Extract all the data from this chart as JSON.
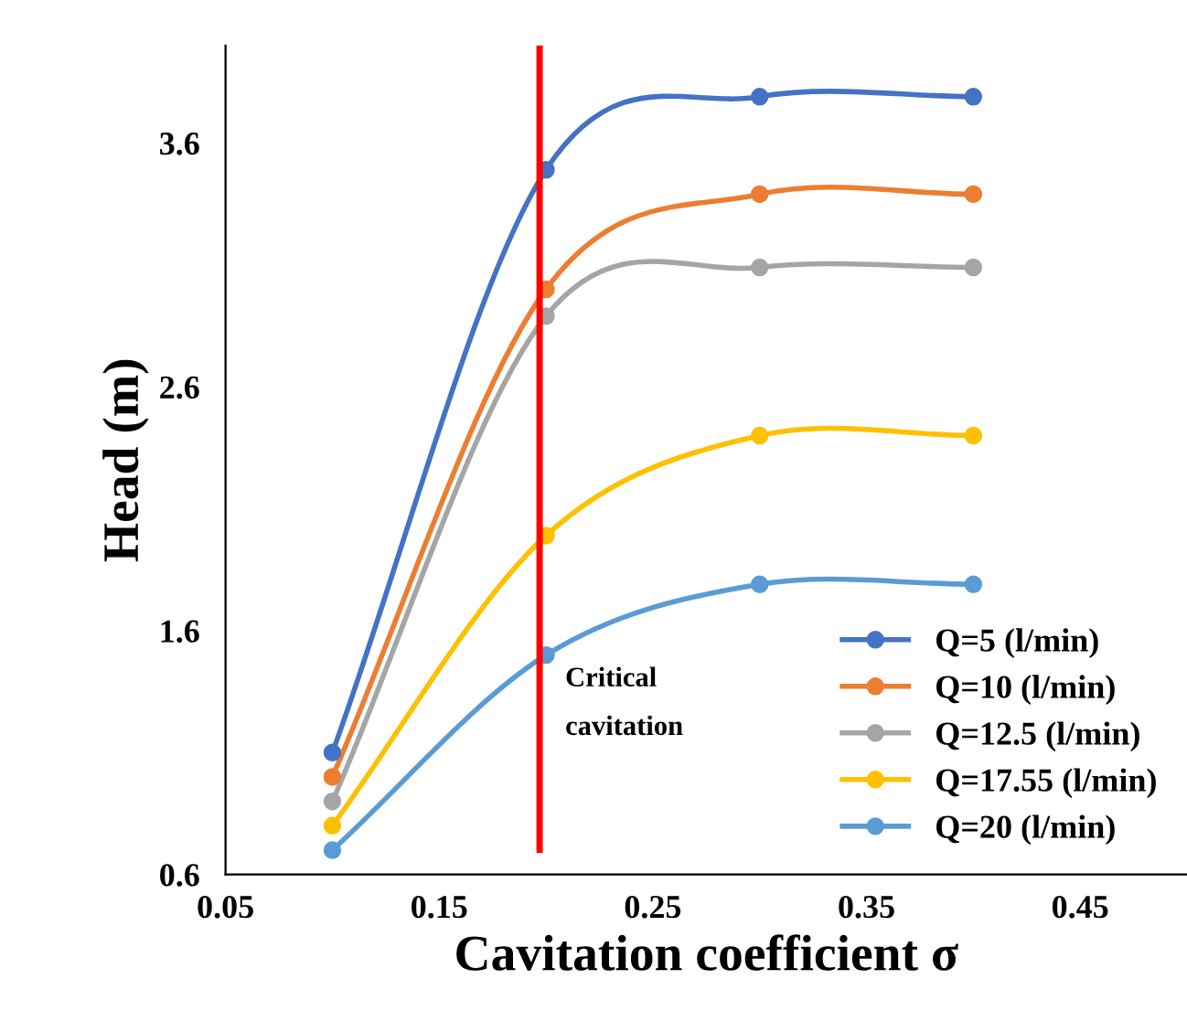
{
  "chart_data": {
    "type": "line",
    "xlabel": "Cavitation coefficient σ",
    "ylabel": "Head (m)",
    "x": [
      0.1,
      0.2,
      0.3,
      0.4
    ],
    "series": [
      {
        "name": "Q=5 (l/min)",
        "color": "#4472c4",
        "values": [
          1.1,
          3.49,
          3.79,
          3.79
        ]
      },
      {
        "name": "Q=10 (l/min)",
        "color": "#ed7d31",
        "values": [
          1.0,
          3.0,
          3.39,
          3.39
        ]
      },
      {
        "name": "Q=12.5 (l/min)",
        "color": "#a5a5a5",
        "values": [
          0.9,
          2.89,
          3.09,
          3.09
        ]
      },
      {
        "name": "Q=17.55 (l/min)",
        "color": "#ffc000",
        "values": [
          0.8,
          1.99,
          2.4,
          2.4
        ]
      },
      {
        "name": "Q=20 (l/min)",
        "color": "#5b9bd5",
        "values": [
          0.7,
          1.5,
          1.79,
          1.79
        ]
      }
    ],
    "xlim": [
      0.05,
      0.5
    ],
    "ylim": [
      0.6,
      4.0
    ],
    "xticks": [
      0.05,
      0.15,
      0.25,
      0.35,
      0.45
    ],
    "yticks": [
      0.6,
      1.6,
      2.6,
      3.6
    ],
    "ref_lines": [
      {
        "axis": "x",
        "value": 0.197,
        "label": "Critical\ncavitation",
        "color": "#ff0000"
      }
    ],
    "grid": false,
    "legend": "bottom right",
    "marker": "circle",
    "line_style": "solid"
  }
}
